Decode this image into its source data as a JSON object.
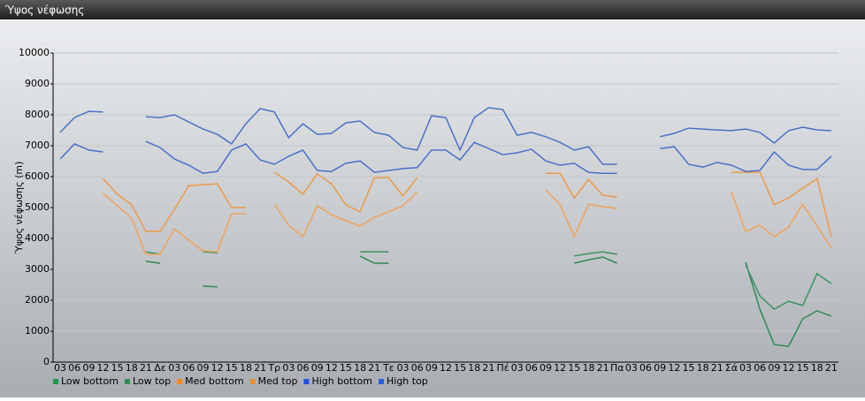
{
  "chart_data": {
    "type": "line",
    "title": "Ύψος νέφωσης",
    "y_label": "Ύψος νέφωσης (m)",
    "categories": [
      "03",
      "06",
      "09",
      "12",
      "15",
      "18",
      "21",
      "Δε",
      "03",
      "06",
      "09",
      "12",
      "15",
      "18",
      "21",
      "Τρ",
      "03",
      "06",
      "09",
      "12",
      "15",
      "18",
      "21",
      "Τε",
      "03",
      "06",
      "09",
      "12",
      "15",
      "18",
      "21",
      "Πέ",
      "03",
      "06",
      "09",
      "12",
      "15",
      "18",
      "21",
      "Πα",
      "03",
      "06",
      "09",
      "12",
      "15",
      "18",
      "21",
      "Σά",
      "03",
      "06",
      "09",
      "12",
      "15",
      "18",
      "21"
    ],
    "ylim": [
      0,
      10000
    ],
    "yticks": [
      0,
      1000,
      2000,
      3000,
      4000,
      5000,
      6000,
      7000,
      8000,
      9000,
      10000
    ],
    "grid": true,
    "series": [
      {
        "name": "Low bottom",
        "color": "#2f8a55",
        "legend_color": "#1f9a4f",
        "values": [
          null,
          null,
          null,
          null,
          null,
          null,
          3260,
          3200,
          null,
          null,
          2460,
          2430,
          null,
          null,
          null,
          null,
          null,
          null,
          null,
          null,
          null,
          3430,
          3200,
          3200,
          null,
          null,
          null,
          null,
          null,
          null,
          null,
          null,
          null,
          null,
          null,
          null,
          3200,
          3310,
          3400,
          3200,
          null,
          null,
          null,
          null,
          null,
          null,
          null,
          null,
          3230,
          1710,
          570,
          510,
          1400,
          1660,
          1490
        ]
      },
      {
        "name": "Low top",
        "color": "#3a9464",
        "legend_color": "#2e8b57",
        "values": [
          null,
          null,
          null,
          null,
          null,
          null,
          3570,
          3490,
          null,
          null,
          3570,
          3540,
          null,
          null,
          null,
          null,
          null,
          null,
          null,
          null,
          null,
          3570,
          3570,
          3570,
          null,
          null,
          null,
          null,
          null,
          null,
          null,
          null,
          null,
          null,
          null,
          null,
          3430,
          3510,
          3570,
          3490,
          null,
          null,
          null,
          null,
          null,
          null,
          null,
          null,
          3140,
          2140,
          1710,
          1970,
          1830,
          2860,
          2540
        ]
      },
      {
        "name": "Med bottom",
        "color": "#f0a35a",
        "legend_color": "#f08a24",
        "values": [
          null,
          null,
          null,
          5460,
          5060,
          4660,
          3490,
          3490,
          4310,
          3940,
          3600,
          3570,
          4800,
          4800,
          null,
          5110,
          4430,
          4060,
          5060,
          4770,
          4570,
          4400,
          4690,
          4860,
          5060,
          5510,
          null,
          null,
          null,
          null,
          null,
          null,
          null,
          null,
          5570,
          5090,
          4060,
          5110,
          5030,
          4970,
          null,
          null,
          null,
          null,
          null,
          null,
          null,
          5510,
          4230,
          4430,
          4060,
          4370,
          5110,
          4400,
          3690
        ]
      },
      {
        "name": "Med top",
        "color": "#ec9a4a",
        "legend_color": "#e8902e",
        "values": [
          null,
          null,
          null,
          5940,
          5430,
          5090,
          4230,
          4230,
          4940,
          5710,
          5740,
          5770,
          5000,
          5000,
          null,
          6140,
          5830,
          5430,
          6090,
          5770,
          5090,
          4860,
          5970,
          5970,
          5370,
          5970,
          null,
          null,
          null,
          null,
          null,
          null,
          null,
          null,
          6110,
          6110,
          5310,
          5910,
          5400,
          5340,
          null,
          null,
          null,
          null,
          null,
          null,
          null,
          6140,
          6140,
          6140,
          5090,
          5310,
          5630,
          5940,
          4060
        ]
      },
      {
        "name": "High bottom",
        "color": "#4a70cc",
        "legend_color": "#2050e0",
        "values": [
          6570,
          7060,
          6860,
          6800,
          null,
          null,
          7140,
          6940,
          6570,
          6370,
          6110,
          6170,
          6860,
          7060,
          6540,
          6400,
          6660,
          6860,
          6200,
          6170,
          6430,
          6510,
          6140,
          6200,
          6260,
          6290,
          6860,
          6860,
          6540,
          7110,
          6910,
          6710,
          6770,
          6890,
          6510,
          6370,
          6430,
          6140,
          6110,
          6110,
          null,
          null,
          6910,
          6970,
          6400,
          6310,
          6460,
          6370,
          6170,
          6200,
          6800,
          6370,
          6230,
          6230,
          6660
        ]
      },
      {
        "name": "High top",
        "color": "#4a72c8",
        "legend_color": "#2a5ed8",
        "values": [
          7430,
          7910,
          8110,
          8090,
          null,
          null,
          7940,
          7910,
          8000,
          7770,
          7540,
          7370,
          7060,
          7710,
          8200,
          8090,
          7260,
          7710,
          7370,
          7400,
          7740,
          7800,
          7430,
          7340,
          6940,
          6860,
          7970,
          7910,
          6860,
          7910,
          8230,
          8170,
          7340,
          7430,
          7290,
          7110,
          6860,
          6970,
          6400,
          6400,
          null,
          null,
          7290,
          7400,
          7570,
          7540,
          7510,
          7490,
          7540,
          7430,
          7090,
          7490,
          7600,
          7510,
          7490
        ]
      }
    ]
  }
}
